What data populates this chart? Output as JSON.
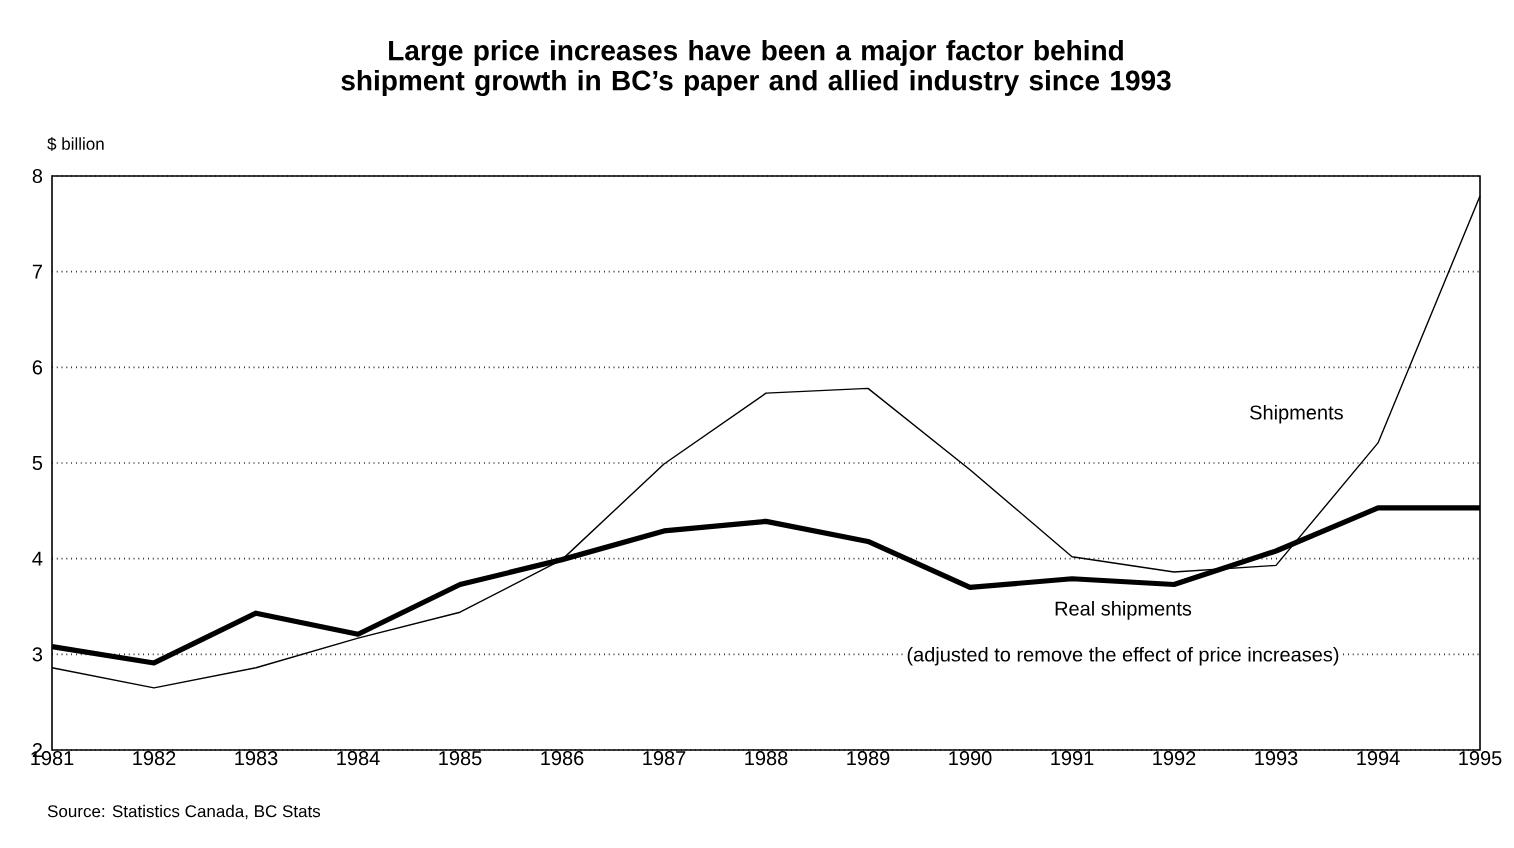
{
  "chart_data": {
    "type": "line",
    "title": "Large price increases have been a major factor behind shipment growth in BC’s paper and allied industry since 1993",
    "ylabel": "$ billion",
    "x": [
      1981,
      1982,
      1983,
      1984,
      1985,
      1986,
      1987,
      1988,
      1989,
      1990,
      1991,
      1992,
      1993,
      1994,
      1995
    ],
    "xlim": [
      1981,
      1995
    ],
    "xticks": [
      1981,
      1982,
      1983,
      1984,
      1985,
      1986,
      1987,
      1988,
      1989,
      1990,
      1991,
      1992,
      1993,
      1994,
      1995
    ],
    "ylim": [
      2,
      8
    ],
    "yticks": [
      2,
      3,
      4,
      5,
      6,
      7,
      8
    ],
    "grid": "y",
    "marker": "none",
    "line_style": "solid",
    "series": [
      {
        "name": "Shipments",
        "color": "#000000",
        "values": [
          2.86,
          2.65,
          2.86,
          3.17,
          3.44,
          3.99,
          4.99,
          5.73,
          5.78,
          4.93,
          4.02,
          3.86,
          3.93,
          5.21,
          7.79
        ]
      },
      {
        "name": "Real shipments",
        "color": "#000000",
        "values": [
          3.08,
          2.91,
          3.43,
          3.21,
          3.73,
          3.99,
          4.29,
          4.39,
          4.18,
          3.7,
          3.79,
          3.73,
          4.08,
          4.53,
          4.53
        ]
      }
    ],
    "annotations": [
      "(adjusted to remove the effect of price increases)",
      "Source: Statistics Canada, BC Stats"
    ]
  }
}
